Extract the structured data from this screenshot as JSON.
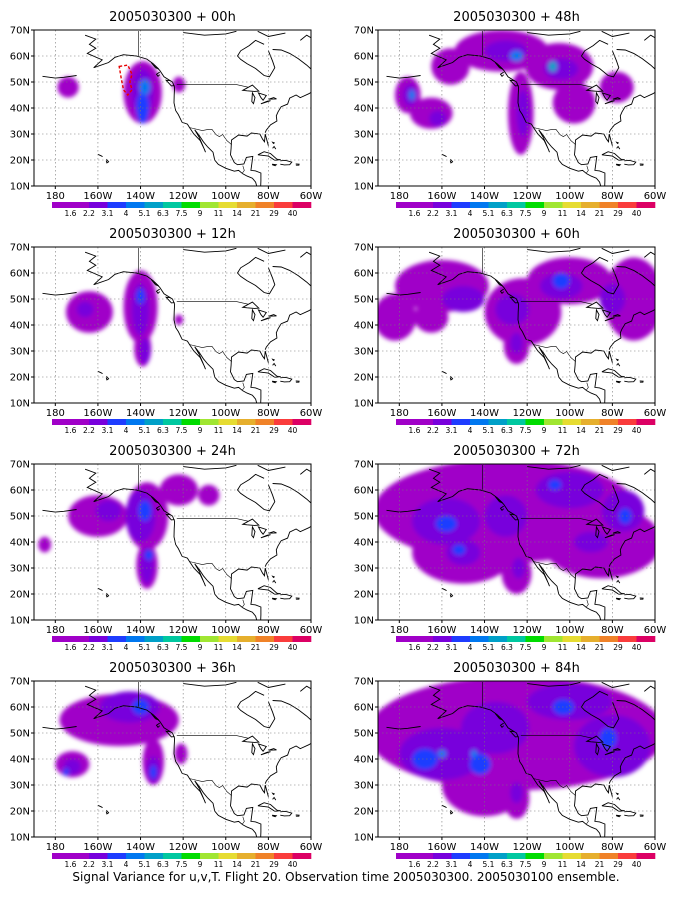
{
  "caption": "Signal Variance for u,v,T. Flight 20. Observation time 2005030300. 2005030100 ensemble.",
  "map_extent": {
    "lon": [
      -190,
      -60
    ],
    "lat": [
      10,
      70
    ]
  },
  "lat_labels": [
    "10N",
    "20N",
    "30N",
    "40N",
    "50N",
    "60N",
    "70N"
  ],
  "lon_labels": [
    "180",
    "160W",
    "140W",
    "120W",
    "100W",
    "80W",
    "60W"
  ],
  "lon_tick_values": [
    -180,
    -160,
    -140,
    -120,
    -100,
    -80,
    -60
  ],
  "lat_tick_values": [
    10,
    20,
    30,
    40,
    50,
    60,
    70
  ],
  "colorbar": {
    "labels": [
      "1.6",
      "2.2",
      "3.1",
      "4",
      "5.1",
      "6.3",
      "7.5",
      "9",
      "11",
      "14",
      "21",
      "29",
      "40"
    ],
    "colors": [
      "#a000c8",
      "#7800dc",
      "#1e3cff",
      "#0078f0",
      "#00a0c8",
      "#00c8a0",
      "#00dc00",
      "#a0e632",
      "#e6dc32",
      "#e6af2d",
      "#f08228",
      "#fa3c3c",
      "#dc0064"
    ]
  },
  "panels": [
    {
      "title": "2005030300 + 00h"
    },
    {
      "title": "2005030300 + 48h"
    },
    {
      "title": "2005030300 + 12h"
    },
    {
      "title": "2005030300 + 60h"
    },
    {
      "title": "2005030300 + 24h"
    },
    {
      "title": "2005030300 + 72h"
    },
    {
      "title": "2005030300 + 36h"
    },
    {
      "title": "2005030300 + 84h"
    }
  ]
}
